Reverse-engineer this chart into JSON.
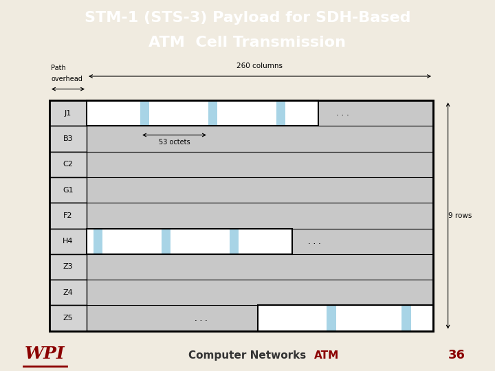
{
  "title_line1": "STM-1 (STS-3) Payload for SDH-Based",
  "title_line2": "ATM  Cell Transmission",
  "title_bg": "#8B0000",
  "title_color": "#FFFFFF",
  "footer_bg": "#BEBEBE",
  "footer_text": "Computer Networks",
  "footer_atm": "ATM",
  "footer_num": "36",
  "bg_color": "#F0EBE0",
  "diagram_bg": "#C8C8C8",
  "label_col_color": "#D4D4D4",
  "cell_color": "#A8D4E6",
  "white_color": "#FFFFFF",
  "row_labels": [
    "J1",
    "B3",
    "C2",
    "G1",
    "F2",
    "H4",
    "Z3",
    "Z4",
    "Z5"
  ]
}
